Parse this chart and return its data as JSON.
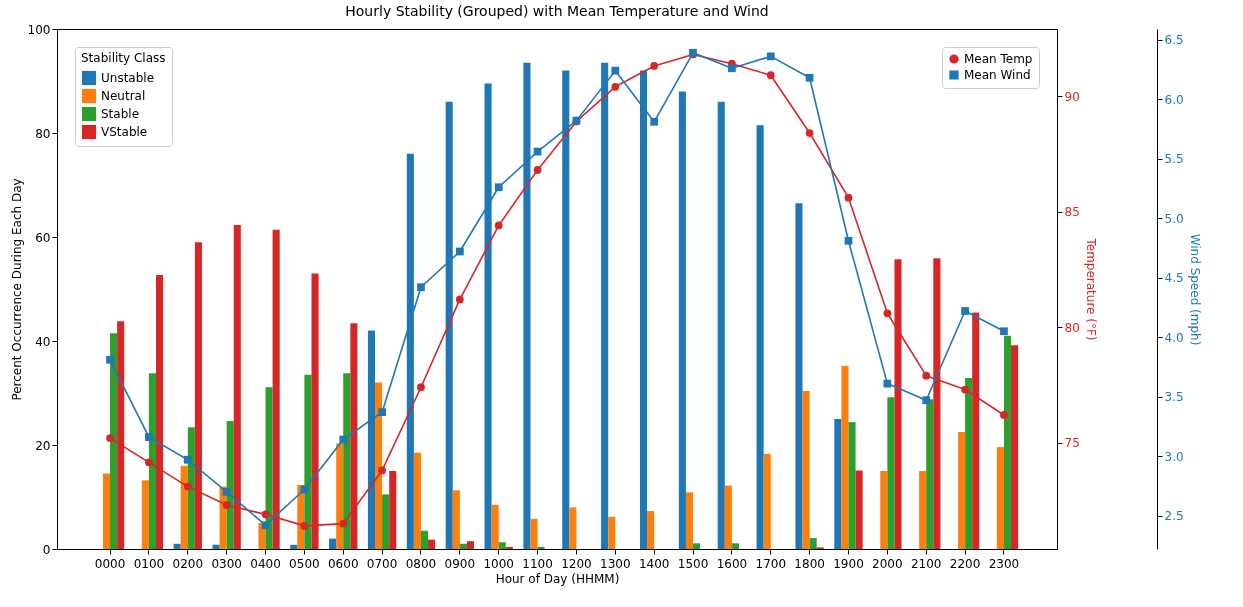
{
  "chart_data": {
    "type": "bar",
    "title": "Hourly Stability (Grouped) with Mean Temperature and Wind",
    "xlabel": "Hour of Day (HHMM)",
    "ylabel": "Percent Occurrence During Each Day",
    "y2label": "Temperature (°F)",
    "y3label": "Wind Speed (mph)",
    "legend_title": "Stability Class",
    "legend": "top left",
    "grid": false,
    "categories": [
      "0000",
      "0100",
      "0200",
      "0300",
      "0400",
      "0500",
      "0600",
      "0700",
      "0800",
      "0900",
      "1000",
      "1100",
      "1200",
      "1300",
      "1400",
      "1500",
      "1600",
      "1700",
      "1800",
      "1900",
      "2000",
      "2100",
      "2200",
      "2300"
    ],
    "ylim": [
      0,
      100
    ],
    "yticks": [
      0,
      20,
      40,
      60,
      80,
      100
    ],
    "y2lim": [
      70.4,
      92.9
    ],
    "y2ticks": [
      75,
      80,
      85,
      90
    ],
    "y3lim": [
      2.22,
      6.59
    ],
    "y3ticks": [
      {
        "value": 2.5,
        "label": "2.5"
      },
      {
        "value": 3,
        "label": "3.0"
      },
      {
        "value": 3.5,
        "label": "3.5"
      },
      {
        "value": 4,
        "label": "4.0"
      },
      {
        "value": 4.5,
        "label": "4.5"
      },
      {
        "value": 5,
        "label": "5.0"
      },
      {
        "value": 5.5,
        "label": "5.5"
      },
      {
        "value": 6,
        "label": "6.0"
      },
      {
        "value": 6.5,
        "label": "6.5"
      }
    ],
    "series": [
      {
        "name": "Unstable",
        "type": "bar",
        "color": "#1f77b4",
        "values": [
          0,
          0,
          1,
          0.8,
          0,
          0.8,
          2,
          42,
          76,
          86,
          89.5,
          93.5,
          92,
          93.5,
          92,
          88,
          86,
          81.5,
          66.5,
          25,
          0,
          0,
          0,
          0
        ]
      },
      {
        "name": "Neutral",
        "type": "bar",
        "color": "#ff7f0e",
        "values": [
          14.5,
          13.2,
          16,
          12,
          5,
          12.3,
          20.3,
          32,
          18.5,
          11.3,
          8.5,
          5.8,
          8,
          6.2,
          7.3,
          10.9,
          12.2,
          18.3,
          30.4,
          35.2,
          15,
          15,
          22.5,
          19.6
        ]
      },
      {
        "name": "Stable",
        "type": "bar",
        "color": "#2ca02c",
        "values": [
          41.5,
          33.8,
          23.4,
          24.6,
          31.1,
          33.5,
          33.8,
          10.5,
          3.5,
          1,
          1.3,
          0.4,
          0,
          0,
          0,
          1.1,
          1.1,
          0,
          2.1,
          24.4,
          29.2,
          28.8,
          32.9,
          41
        ]
      },
      {
        "name": "VStable",
        "type": "bar",
        "color": "#d62728",
        "values": [
          43.8,
          52.7,
          59,
          62.3,
          61.4,
          53,
          43.4,
          15,
          1.8,
          1.5,
          0.4,
          0,
          0,
          0,
          0,
          0,
          0,
          0,
          0.3,
          15.1,
          55.7,
          55.9,
          45.5,
          39.2
        ]
      },
      {
        "name": "Mean Temp",
        "type": "line",
        "axis": "y2",
        "marker": "circle",
        "color": "#d62728",
        "values": [
          75.2,
          74.15,
          73.1,
          72.3,
          71.9,
          71.4,
          71.5,
          73.8,
          77.4,
          81.2,
          84.4,
          86.8,
          88.9,
          90.4,
          91.3,
          91.8,
          91.4,
          90.9,
          88.4,
          85.6,
          80.6,
          77.9,
          77.3,
          76.2
        ]
      },
      {
        "name": "Mean Wind",
        "type": "line",
        "axis": "y3",
        "marker": "square",
        "color": "#1f77b4",
        "values": [
          3.81,
          3.16,
          2.97,
          2.7,
          2.42,
          2.72,
          3.14,
          3.37,
          4.42,
          4.72,
          5.26,
          5.56,
          5.82,
          6.24,
          5.81,
          6.39,
          6.26,
          6.36,
          6.18,
          4.81,
          3.61,
          3.47,
          4.22,
          4.05
        ]
      }
    ]
  }
}
